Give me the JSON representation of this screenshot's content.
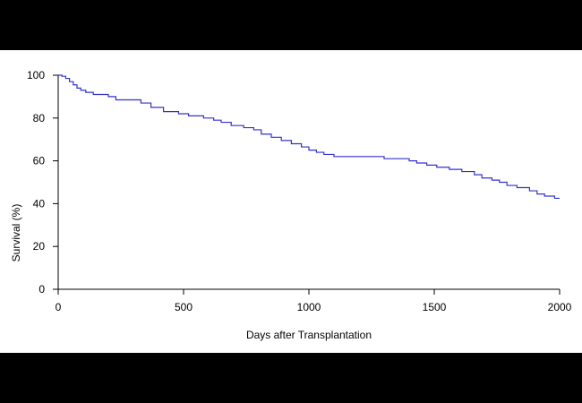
{
  "chart_data": {
    "type": "line",
    "title": "",
    "xlabel": "Days after Transplantation",
    "ylabel": "Survival (%)",
    "xlim": [
      0,
      2000
    ],
    "ylim": [
      0,
      100
    ],
    "x_ticks": [
      0,
      500,
      1000,
      1500,
      2000
    ],
    "y_ticks": [
      0,
      20,
      40,
      60,
      80,
      100
    ],
    "grid": false,
    "legend": "none",
    "step": true,
    "series": [
      {
        "color": "#3333cc",
        "points": [
          [
            0,
            100
          ],
          [
            15,
            99.5
          ],
          [
            30,
            98.5
          ],
          [
            45,
            97
          ],
          [
            60,
            95.5
          ],
          [
            75,
            94
          ],
          [
            90,
            93
          ],
          [
            110,
            92
          ],
          [
            140,
            91
          ],
          [
            200,
            90
          ],
          [
            230,
            88.5
          ],
          [
            330,
            87
          ],
          [
            370,
            85
          ],
          [
            420,
            83
          ],
          [
            480,
            82
          ],
          [
            520,
            81
          ],
          [
            580,
            80
          ],
          [
            620,
            79
          ],
          [
            650,
            78
          ],
          [
            690,
            76.5
          ],
          [
            740,
            75.5
          ],
          [
            780,
            74.5
          ],
          [
            810,
            72.5
          ],
          [
            850,
            71
          ],
          [
            890,
            69.5
          ],
          [
            930,
            68
          ],
          [
            970,
            66.5
          ],
          [
            1000,
            65
          ],
          [
            1030,
            64
          ],
          [
            1060,
            63
          ],
          [
            1100,
            62
          ],
          [
            1300,
            61
          ],
          [
            1400,
            60
          ],
          [
            1430,
            59
          ],
          [
            1470,
            58
          ],
          [
            1510,
            57
          ],
          [
            1560,
            56
          ],
          [
            1610,
            55
          ],
          [
            1660,
            53.5
          ],
          [
            1690,
            52
          ],
          [
            1730,
            51
          ],
          [
            1760,
            50
          ],
          [
            1790,
            48.5
          ],
          [
            1830,
            47.5
          ],
          [
            1880,
            46
          ],
          [
            1910,
            44.5
          ],
          [
            1940,
            43.5
          ],
          [
            1980,
            42.5
          ],
          [
            2000,
            42.5
          ]
        ]
      }
    ]
  }
}
